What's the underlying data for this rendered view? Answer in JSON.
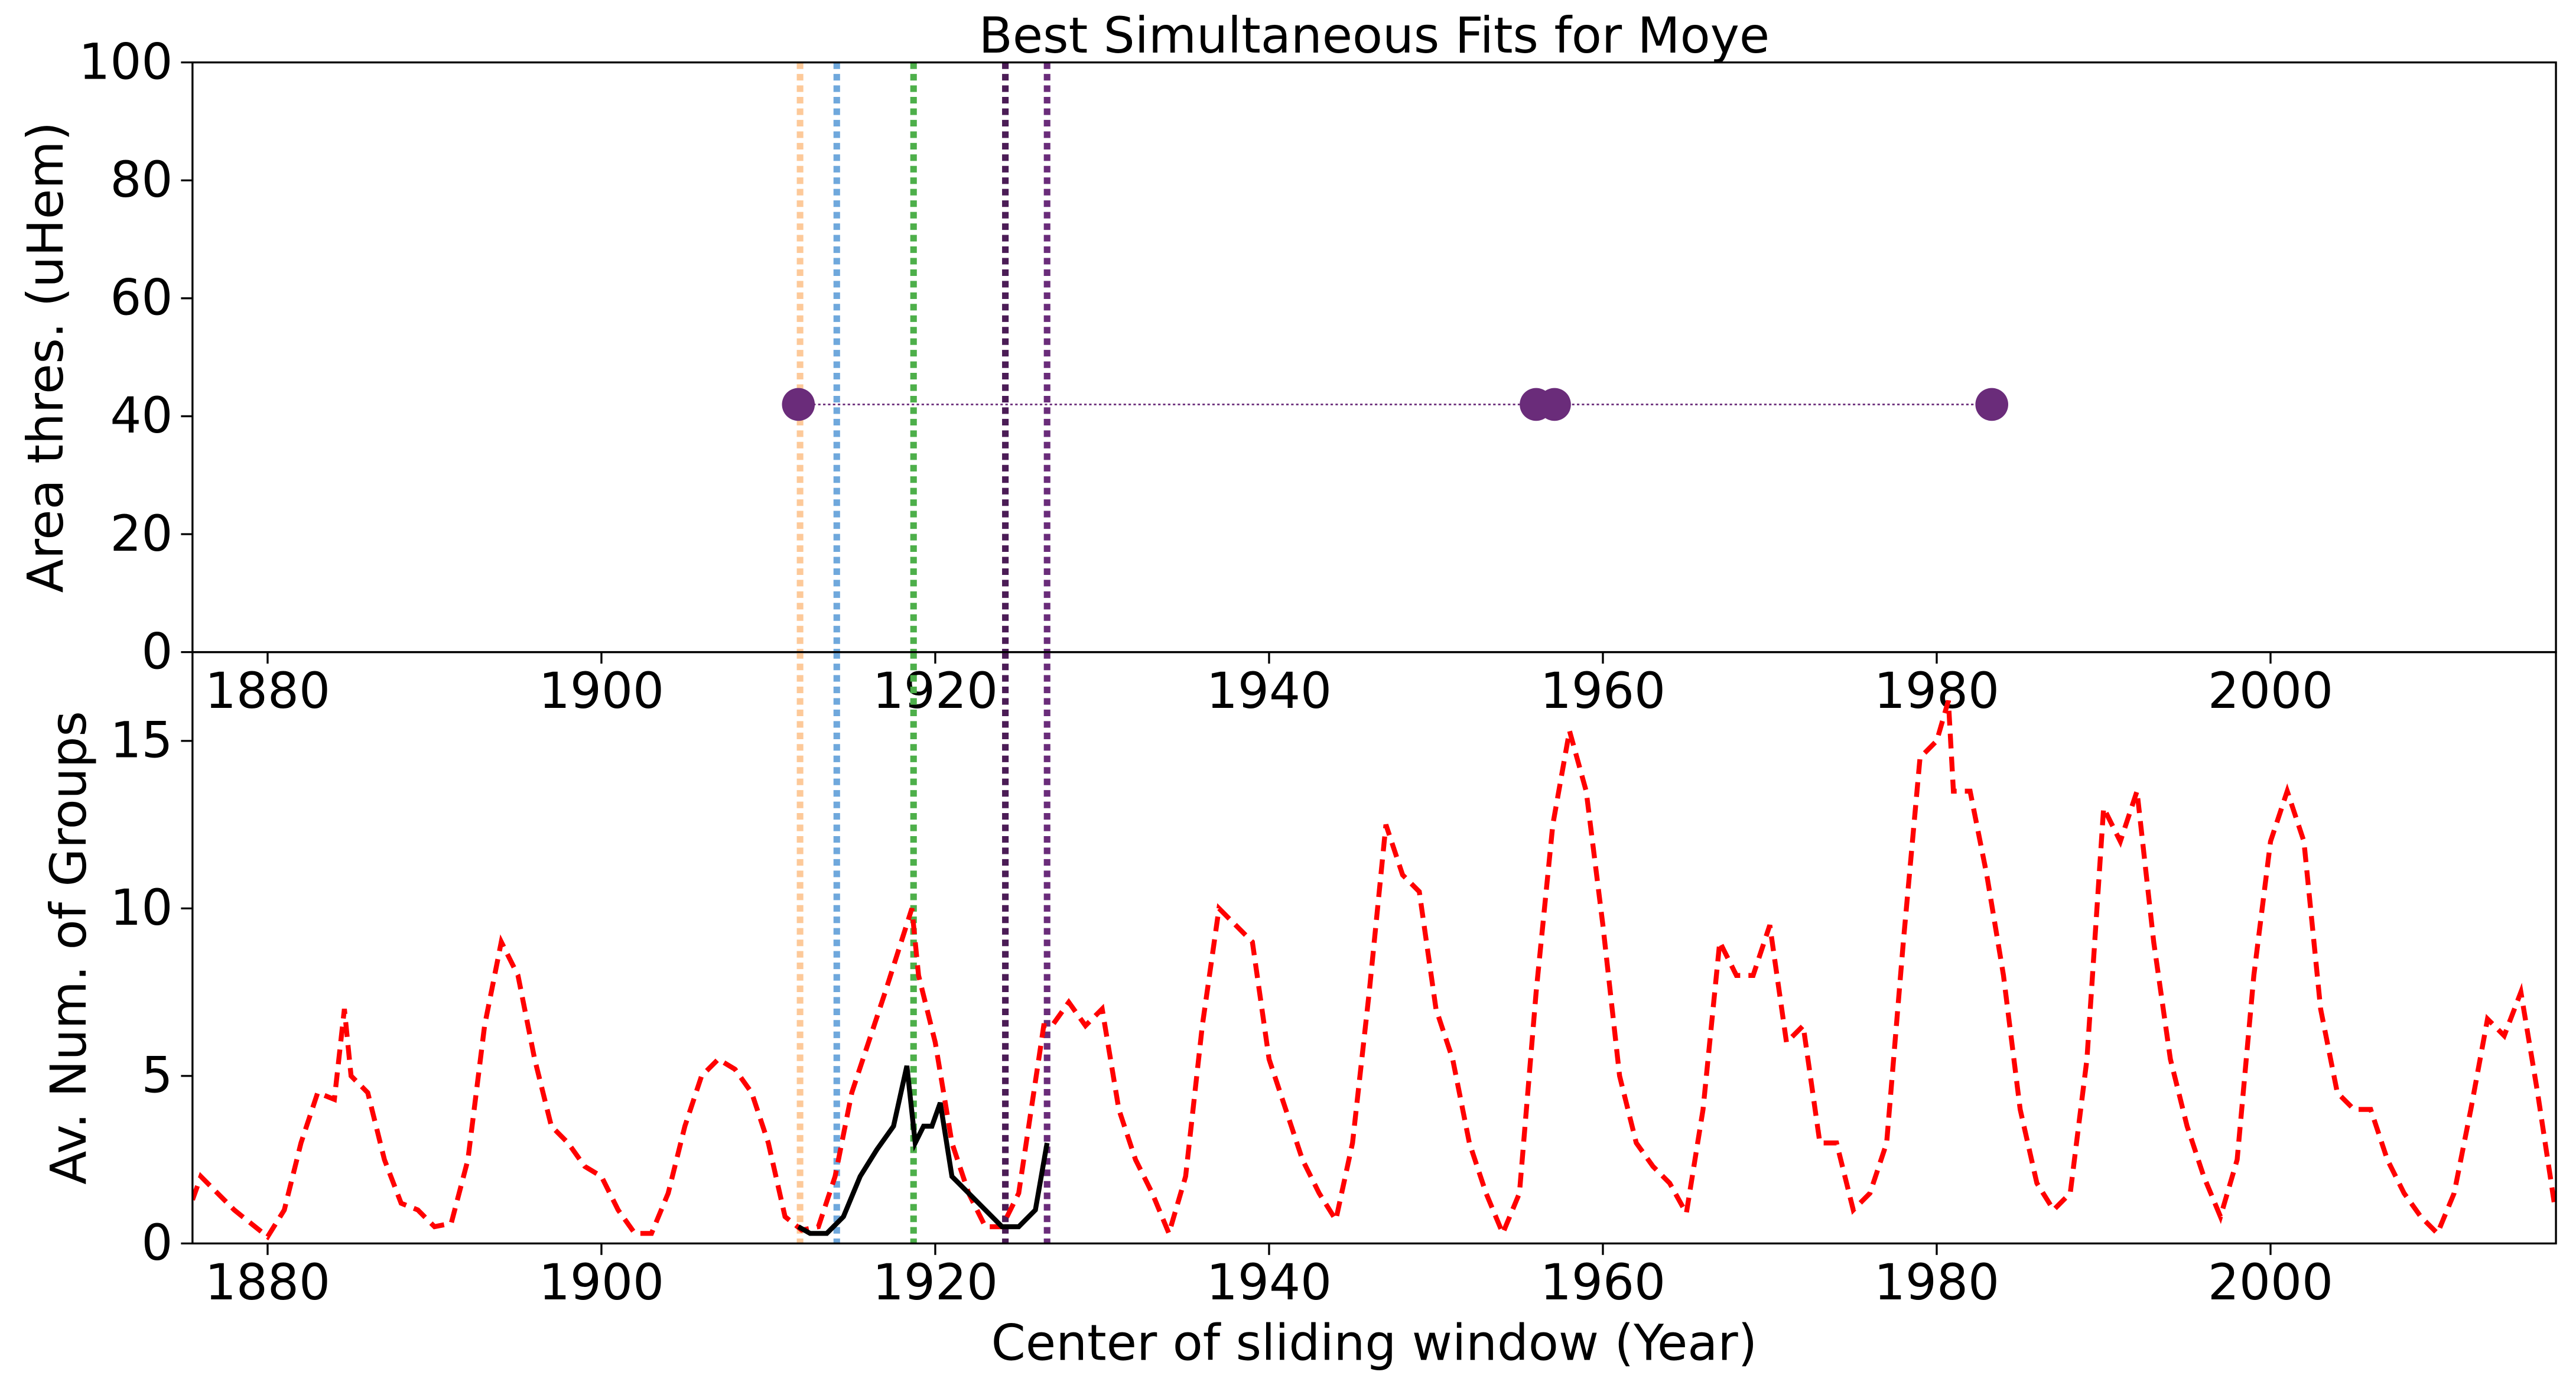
{
  "chart_data": [
    {
      "type": "scatter",
      "title": "Best Simultaneous Fits for Moye",
      "ylabel": "Area thres. (uHem)",
      "x": [
        1911.8,
        1956.0,
        1957.1,
        1983.3
      ],
      "values": [
        42,
        42,
        42,
        42
      ],
      "color": "#6a2c7a",
      "xlim": [
        1875.5,
        2017.1
      ],
      "xticks": [
        1880,
        1900,
        1920,
        1940,
        1960,
        1980,
        2000
      ],
      "ylim": [
        0,
        100
      ],
      "yticks": [
        0,
        20,
        40,
        60,
        80,
        100
      ],
      "vlines": [
        {
          "x": 1911.9,
          "color": "#fdc999"
        },
        {
          "x": 1914.1,
          "color": "#6fa8dc"
        },
        {
          "x": 1918.7,
          "color": "#4daf4a"
        },
        {
          "x": 1924.2,
          "color": "#4b1c56"
        },
        {
          "x": 1926.7,
          "color": "#6a2c7a"
        }
      ]
    },
    {
      "type": "line",
      "ylabel": "Av. Num. of Groups",
      "xlabel": "Center of sliding window (Year)",
      "xlim": [
        1875.5,
        2017.1
      ],
      "xticks": [
        1880,
        1900,
        1920,
        1940,
        1960,
        1980,
        2000
      ],
      "ylim": [
        0,
        17.65
      ],
      "yticks": [
        0,
        5,
        10,
        15
      ],
      "vlines": [
        {
          "x": 1911.9,
          "color": "#fdc999"
        },
        {
          "x": 1914.1,
          "color": "#6fa8dc"
        },
        {
          "x": 1918.7,
          "color": "#4daf4a"
        },
        {
          "x": 1924.2,
          "color": "#4b1c56"
        },
        {
          "x": 1926.7,
          "color": "#6a2c7a"
        }
      ],
      "series": [
        {
          "color": "#ff0000",
          "style": "dashed",
          "x": [
            1875.5,
            1876,
            1877,
            1878,
            1879,
            1880,
            1881,
            1882,
            1883,
            1884,
            1884.6,
            1885,
            1886,
            1887,
            1888,
            1889,
            1890,
            1891,
            1892,
            1893,
            1894,
            1895,
            1896,
            1897,
            1898,
            1899,
            1900,
            1901,
            1902,
            1903,
            1904,
            1905,
            1906,
            1907,
            1908,
            1909,
            1910,
            1911,
            1912,
            1913,
            1914,
            1915,
            1916,
            1917,
            1918.6,
            1919,
            1920,
            1921,
            1922,
            1923,
            1924,
            1925,
            1926.5,
            1927,
            1928,
            1929,
            1930,
            1931,
            1932,
            1933,
            1934,
            1935,
            1936,
            1937,
            1938,
            1939,
            1940,
            1941,
            1942,
            1943,
            1944,
            1945,
            1946,
            1947,
            1948,
            1949,
            1950,
            1951,
            1952,
            1953,
            1954,
            1955,
            1956,
            1957,
            1958,
            1959,
            1960,
            1961,
            1962,
            1963,
            1964,
            1965,
            1966,
            1967,
            1968,
            1969,
            1970,
            1971,
            1972,
            1973,
            1974,
            1975,
            1976,
            1977,
            1978,
            1979,
            1980,
            1980.7,
            1981,
            1982,
            1983,
            1984,
            1985,
            1986,
            1987,
            1988,
            1989,
            1990,
            1991,
            1992,
            1993,
            1994,
            1995,
            1996,
            1997,
            1998,
            1999,
            2000,
            2001,
            2002,
            2003,
            2004,
            2005,
            2006,
            2007,
            2008,
            2009,
            2010,
            2011,
            2012,
            2013,
            2014,
            2015,
            2016,
            2017
          ],
          "values": [
            1.3,
            2.0,
            1.5,
            1.0,
            0.6,
            0.2,
            1.0,
            3.0,
            4.5,
            4.3,
            7.0,
            5.0,
            4.5,
            2.5,
            1.2,
            1.0,
            0.5,
            0.6,
            2.5,
            6.5,
            9.0,
            8.0,
            5.5,
            3.5,
            3.0,
            2.3,
            2.0,
            1.0,
            0.3,
            0.3,
            1.5,
            3.5,
            5.0,
            5.5,
            5.2,
            4.5,
            3.0,
            0.8,
            0.4,
            0.5,
            2.0,
            4.5,
            6.0,
            7.5,
            10.0,
            8.0,
            6.0,
            3.0,
            1.5,
            0.5,
            0.5,
            1.5,
            6.5,
            6.5,
            7.2,
            6.5,
            7.0,
            4.0,
            2.5,
            1.5,
            0.3,
            2.0,
            6.5,
            10.0,
            9.5,
            9.0,
            5.5,
            4.0,
            2.5,
            1.5,
            0.7,
            3.0,
            7.5,
            12.5,
            11.0,
            10.5,
            7.0,
            5.5,
            3.0,
            1.5,
            0.3,
            1.5,
            7.5,
            12.5,
            15.3,
            13.5,
            9.5,
            5.0,
            3.0,
            2.3,
            1.8,
            0.9,
            4.0,
            9.0,
            8.0,
            8.0,
            9.5,
            6.0,
            6.5,
            3.0,
            3.0,
            1.0,
            1.5,
            3.0,
            9.0,
            14.5,
            15.0,
            16.2,
            13.5,
            13.5,
            11.0,
            8.0,
            4.0,
            1.8,
            1.0,
            1.5,
            5.5,
            13.0,
            12.0,
            13.5,
            9.0,
            5.5,
            3.5,
            2.0,
            0.8,
            2.5,
            8.0,
            12.0,
            13.5,
            12.0,
            7.0,
            4.5,
            4.0,
            4.0,
            2.5,
            1.5,
            0.8,
            0.3,
            1.5,
            4.0,
            6.7,
            6.2,
            7.5,
            4.5,
            1.2
          ]
        },
        {
          "color": "#000000",
          "style": "solid",
          "x": [
            1911.8,
            1912.5,
            1913.5,
            1914.5,
            1915.5,
            1916.5,
            1917.5,
            1918.3,
            1918.8,
            1919.3,
            1919.8,
            1920.3,
            1921,
            1922,
            1923,
            1924,
            1925,
            1926,
            1926.7
          ],
          "values": [
            0.5,
            0.3,
            0.3,
            0.8,
            2.0,
            2.8,
            3.5,
            5.3,
            3.0,
            3.5,
            3.5,
            4.2,
            2.0,
            1.5,
            1.0,
            0.5,
            0.5,
            1.0,
            3.0
          ]
        }
      ]
    }
  ]
}
